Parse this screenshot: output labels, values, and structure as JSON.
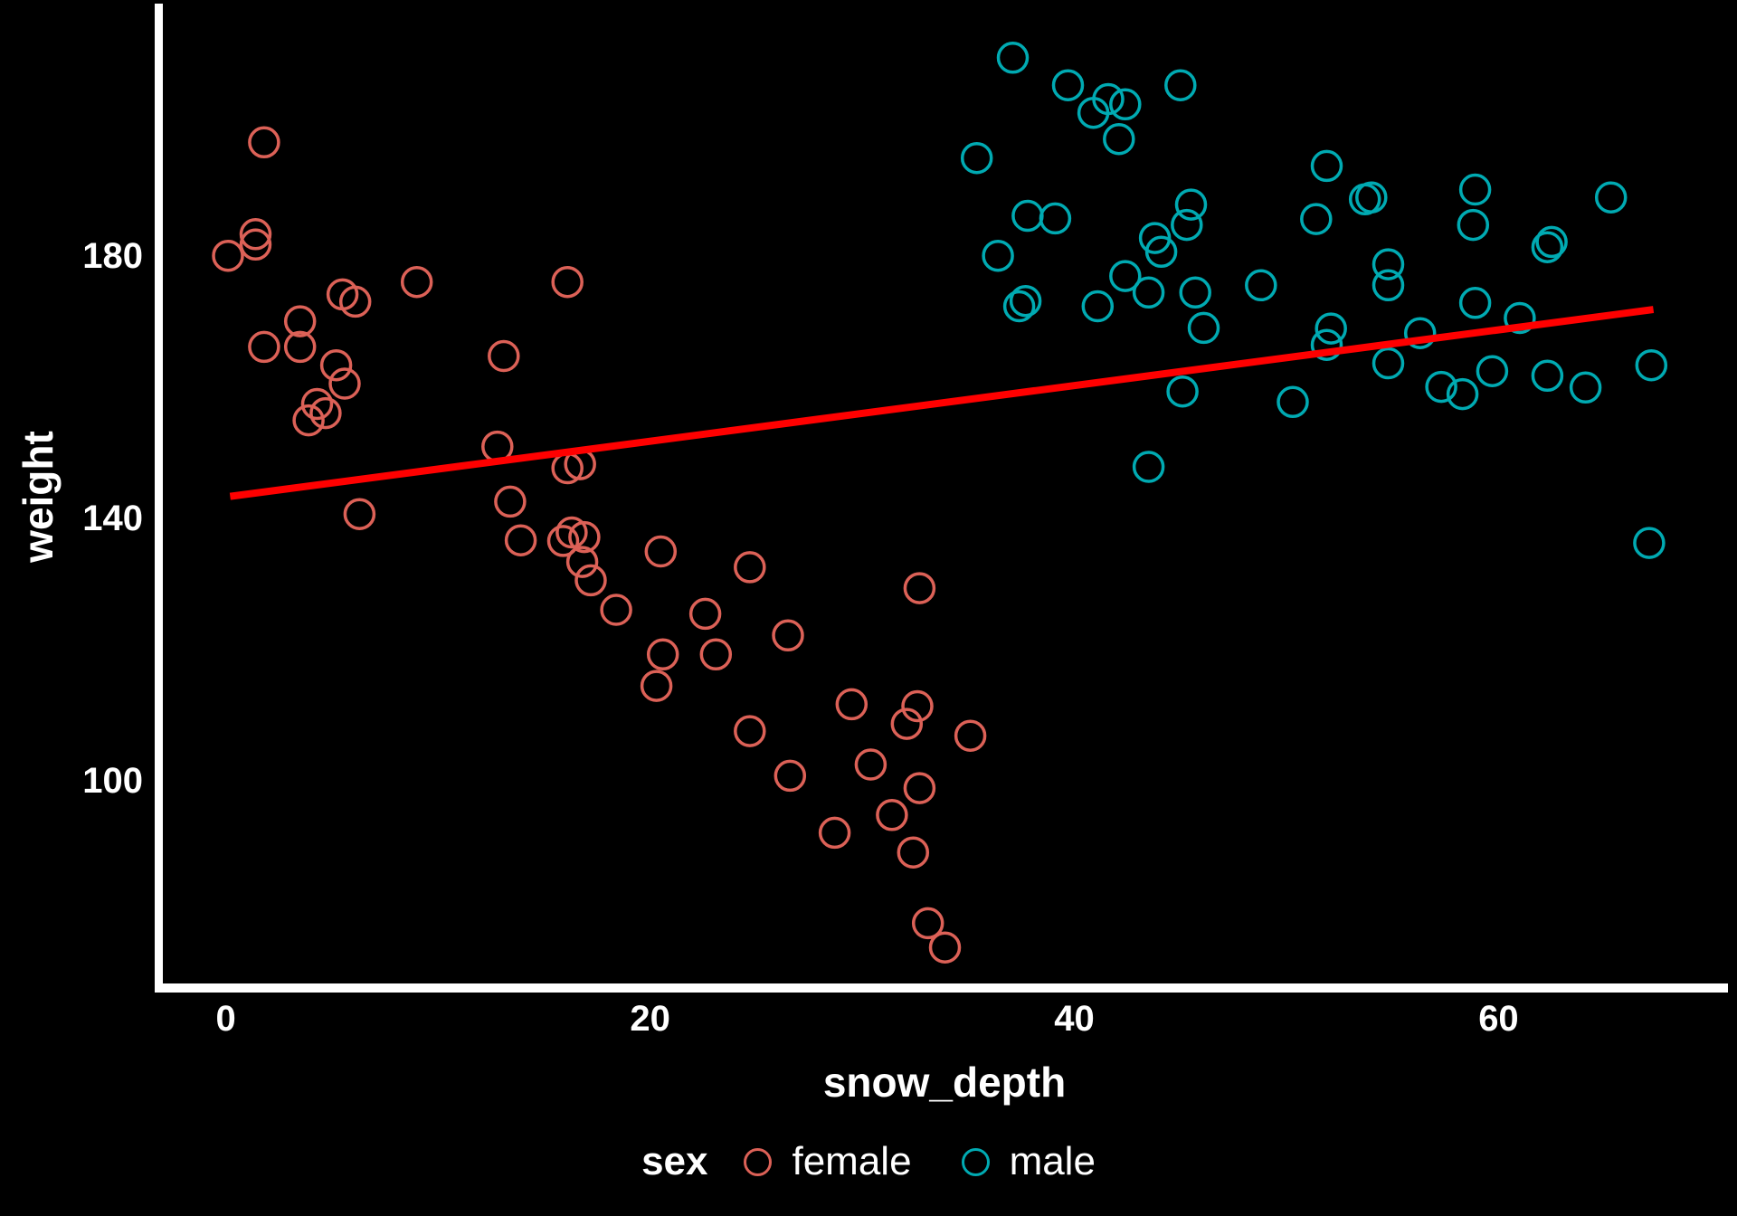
{
  "chart_data": {
    "type": "scatter",
    "title": "",
    "xlabel": "snow_depth",
    "ylabel": "weight",
    "x_ticks": [
      0,
      20,
      40,
      60
    ],
    "y_ticks": [
      100,
      140,
      180
    ],
    "xlim": [
      -3.1,
      70.9
    ],
    "ylim": [
      68.7,
      218.0
    ],
    "grid": false,
    "background_color": "#000000",
    "axis_color": "#FFFFFF",
    "text_color": "#FFFFFF",
    "marker_style": "open-circle",
    "legend": {
      "title": "sex",
      "position": "bottom",
      "entries": [
        {
          "label": "female",
          "color": "#DC6157"
        },
        {
          "label": "male",
          "color": "#00AAB2"
        }
      ]
    },
    "regression_line": {
      "color": "#FF0000",
      "x1": 0.2,
      "y1": 143.4,
      "x2": 67.3,
      "y2": 171.9
    },
    "series": [
      {
        "name": "female",
        "color": "#DC6157",
        "points": [
          [
            1.8,
            197.4
          ],
          [
            1.4,
            183.4
          ],
          [
            1.4,
            181.8
          ],
          [
            0.1,
            180.1
          ],
          [
            9.0,
            176.1
          ],
          [
            16.1,
            176.1
          ],
          [
            5.5,
            174.2
          ],
          [
            6.1,
            173.1
          ],
          [
            3.5,
            170.1
          ],
          [
            1.8,
            166.2
          ],
          [
            3.5,
            166.2
          ],
          [
            13.1,
            164.8
          ],
          [
            5.2,
            163.4
          ],
          [
            5.6,
            160.6
          ],
          [
            4.3,
            157.5
          ],
          [
            4.7,
            156.1
          ],
          [
            3.9,
            155.0
          ],
          [
            12.8,
            151.0
          ],
          [
            16.7,
            148.3
          ],
          [
            16.1,
            147.7
          ],
          [
            13.4,
            142.6
          ],
          [
            6.3,
            140.7
          ],
          [
            13.9,
            136.7
          ],
          [
            16.3,
            137.9
          ],
          [
            16.9,
            137.2
          ],
          [
            15.9,
            136.6
          ],
          [
            16.8,
            133.4
          ],
          [
            17.2,
            130.6
          ],
          [
            20.5,
            135.0
          ],
          [
            24.7,
            132.6
          ],
          [
            18.4,
            126.1
          ],
          [
            22.6,
            125.5
          ],
          [
            26.5,
            122.2
          ],
          [
            32.7,
            129.4
          ],
          [
            20.6,
            119.3
          ],
          [
            23.1,
            119.3
          ],
          [
            20.3,
            114.5
          ],
          [
            29.5,
            111.7
          ],
          [
            32.6,
            111.4
          ],
          [
            32.1,
            108.7
          ],
          [
            35.1,
            106.9
          ],
          [
            24.7,
            107.6
          ],
          [
            26.6,
            100.8
          ],
          [
            30.4,
            102.5
          ],
          [
            32.7,
            98.9
          ],
          [
            31.4,
            94.8
          ],
          [
            28.7,
            92.1
          ],
          [
            32.4,
            89.1
          ],
          [
            33.1,
            78.3
          ],
          [
            33.9,
            74.6
          ]
        ]
      },
      {
        "name": "male",
        "color": "#00AAB2",
        "points": [
          [
            37.1,
            210.3
          ],
          [
            39.7,
            206.1
          ],
          [
            41.6,
            204.0
          ],
          [
            40.9,
            201.9
          ],
          [
            42.4,
            203.2
          ],
          [
            45.0,
            206.1
          ],
          [
            42.1,
            197.9
          ],
          [
            35.4,
            195.0
          ],
          [
            37.8,
            186.2
          ],
          [
            39.1,
            185.8
          ],
          [
            45.5,
            187.9
          ],
          [
            45.3,
            184.8
          ],
          [
            43.8,
            182.8
          ],
          [
            44.1,
            180.7
          ],
          [
            36.4,
            180.1
          ],
          [
            42.4,
            177.0
          ],
          [
            43.5,
            174.5
          ],
          [
            37.7,
            173.2
          ],
          [
            37.4,
            172.4
          ],
          [
            41.1,
            172.4
          ],
          [
            45.7,
            174.5
          ],
          [
            48.8,
            175.6
          ],
          [
            46.1,
            169.1
          ],
          [
            45.1,
            159.4
          ],
          [
            51.9,
            193.8
          ],
          [
            53.7,
            188.7
          ],
          [
            54.0,
            189.0
          ],
          [
            51.4,
            185.7
          ],
          [
            58.9,
            190.2
          ],
          [
            58.8,
            184.8
          ],
          [
            65.3,
            189.0
          ],
          [
            62.3,
            181.4
          ],
          [
            62.5,
            182.2
          ],
          [
            54.8,
            178.8
          ],
          [
            54.8,
            175.6
          ],
          [
            58.9,
            172.9
          ],
          [
            61.0,
            170.6
          ],
          [
            52.1,
            169.0
          ],
          [
            51.9,
            166.5
          ],
          [
            56.3,
            168.3
          ],
          [
            54.8,
            163.7
          ],
          [
            57.3,
            160.1
          ],
          [
            58.3,
            159.0
          ],
          [
            59.7,
            162.5
          ],
          [
            62.3,
            161.8
          ],
          [
            64.1,
            160.0
          ],
          [
            67.2,
            163.4
          ],
          [
            50.3,
            157.8
          ],
          [
            43.5,
            147.9
          ],
          [
            67.1,
            136.3
          ]
        ]
      }
    ]
  }
}
